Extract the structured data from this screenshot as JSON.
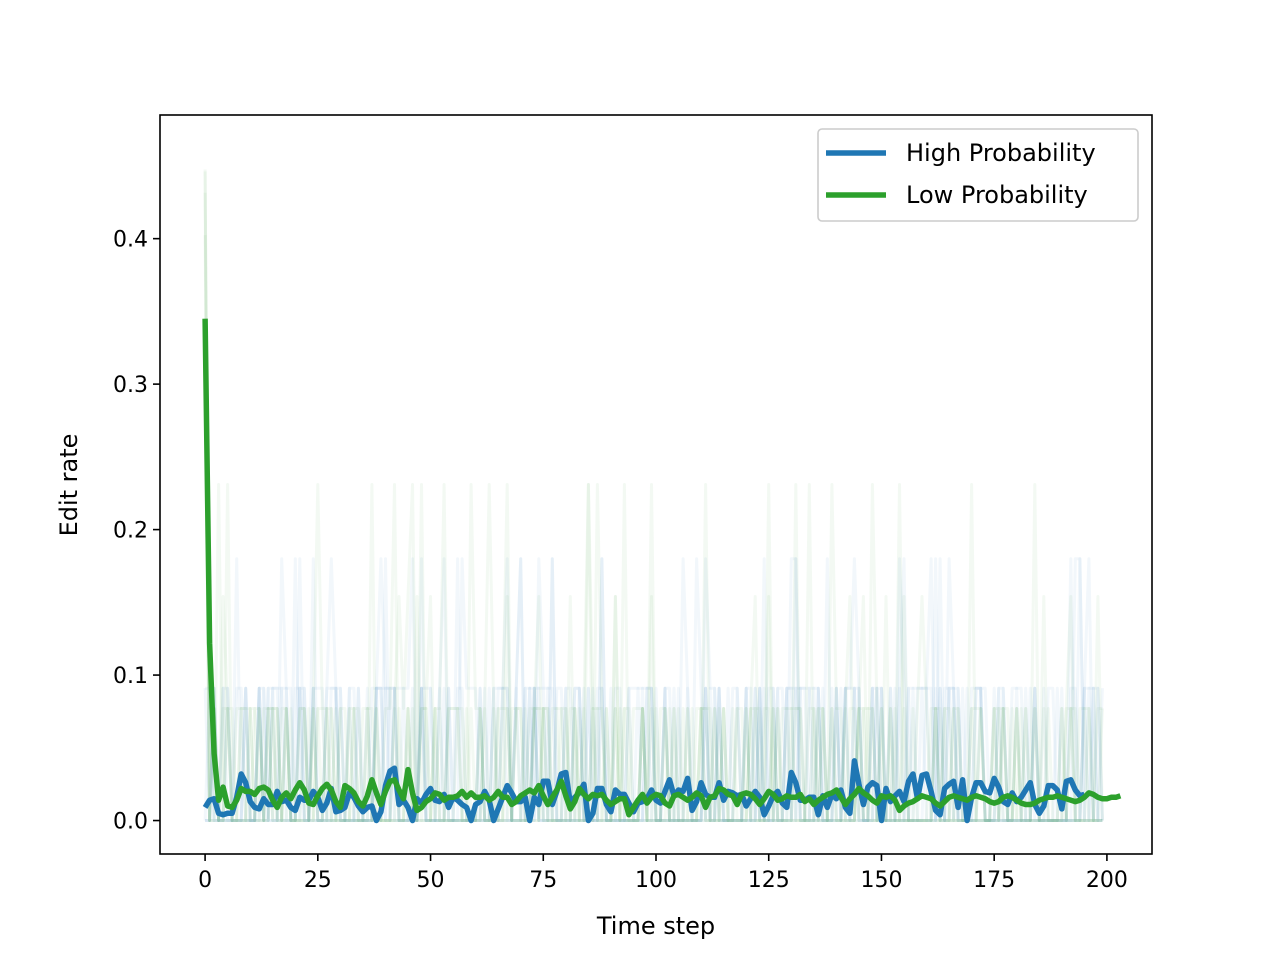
{
  "chart_data": {
    "type": "line",
    "title": "",
    "xlabel": "Time step",
    "ylabel": "Edit rate",
    "xlim": [
      -10,
      210
    ],
    "ylim": [
      -0.023,
      0.485
    ],
    "xticks": [
      0,
      25,
      50,
      75,
      100,
      125,
      150,
      175,
      200
    ],
    "xtick_labels": [
      "0",
      "25",
      "50",
      "75",
      "100",
      "125",
      "150",
      "175",
      "200"
    ],
    "yticks": [
      0.0,
      0.1,
      0.2,
      0.3,
      0.4
    ],
    "ytick_labels": [
      "0.0",
      "0.1",
      "0.2",
      "0.3",
      "0.4"
    ],
    "grid": false,
    "legend_position": "top-right",
    "series": [
      {
        "name": "High Probability",
        "color": "#1f77b4",
        "x_start": 0,
        "x_step": 1,
        "values": [
          0.009,
          0.014,
          0.015,
          0.005,
          0.004,
          0.005,
          0.005,
          0.016,
          0.032,
          0.026,
          0.013,
          0.009,
          0.008,
          0.015,
          0.011,
          0.011,
          0.02,
          0.013,
          0.014,
          0.009,
          0.007,
          0.016,
          0.014,
          0.014,
          0.02,
          0.016,
          0.007,
          0.012,
          0.022,
          0.006,
          0.007,
          0.009,
          0.019,
          0.016,
          0.01,
          0.006,
          0.009,
          0.01,
          0.0,
          0.006,
          0.024,
          0.034,
          0.036,
          0.011,
          0.014,
          0.009,
          0.0,
          0.015,
          0.012,
          0.018,
          0.022,
          0.014,
          0.013,
          0.018,
          0.009,
          0.016,
          0.014,
          0.011,
          0.009,
          0.0,
          0.011,
          0.013,
          0.02,
          0.014,
          0.0,
          0.008,
          0.016,
          0.024,
          0.019,
          0.013,
          0.013,
          0.016,
          0.0,
          0.016,
          0.011,
          0.027,
          0.027,
          0.011,
          0.02,
          0.032,
          0.033,
          0.012,
          0.016,
          0.019,
          0.025,
          0.0,
          0.005,
          0.022,
          0.022,
          0.011,
          0.006,
          0.021,
          0.018,
          0.018,
          0.012,
          0.006,
          0.012,
          0.013,
          0.015,
          0.021,
          0.014,
          0.012,
          0.02,
          0.028,
          0.017,
          0.021,
          0.02,
          0.029,
          0.007,
          0.013,
          0.026,
          0.018,
          0.016,
          0.016,
          0.026,
          0.014,
          0.02,
          0.019,
          0.017,
          0.018,
          0.01,
          0.015,
          0.02,
          0.016,
          0.004,
          0.01,
          0.017,
          0.02,
          0.012,
          0.009,
          0.033,
          0.026,
          0.014,
          0.014,
          0.016,
          0.016,
          0.004,
          0.017,
          0.009,
          0.018,
          0.015,
          0.021,
          0.009,
          0.005,
          0.041,
          0.025,
          0.011,
          0.023,
          0.026,
          0.024,
          0.0,
          0.022,
          0.013,
          0.017,
          0.02,
          0.013,
          0.027,
          0.032,
          0.015,
          0.031,
          0.032,
          0.02,
          0.007,
          0.004,
          0.022,
          0.025,
          0.027,
          0.009,
          0.028,
          0.0,
          0.016,
          0.026,
          0.026,
          0.02,
          0.019,
          0.029,
          0.023,
          0.013,
          0.011,
          0.019,
          0.013,
          0.016,
          0.021,
          0.026,
          0.011,
          0.005,
          0.01,
          0.024,
          0.024,
          0.021,
          0.008,
          0.027,
          0.028,
          0.021,
          0.017,
          0.018
        ]
      },
      {
        "name": "Low Probability",
        "color": "#2ca02c",
        "x_start": 0,
        "x_step": 1,
        "values": [
          0.345,
          0.122,
          0.046,
          0.014,
          0.023,
          0.01,
          0.009,
          0.014,
          0.022,
          0.02,
          0.02,
          0.018,
          0.022,
          0.023,
          0.021,
          0.014,
          0.009,
          0.016,
          0.019,
          0.015,
          0.021,
          0.026,
          0.021,
          0.012,
          0.011,
          0.017,
          0.022,
          0.025,
          0.021,
          0.013,
          0.009,
          0.024,
          0.022,
          0.019,
          0.013,
          0.01,
          0.017,
          0.028,
          0.019,
          0.011,
          0.02,
          0.027,
          0.028,
          0.021,
          0.015,
          0.035,
          0.019,
          0.007,
          0.009,
          0.013,
          0.015,
          0.019,
          0.018,
          0.014,
          0.016,
          0.016,
          0.017,
          0.02,
          0.016,
          0.019,
          0.016,
          0.016,
          0.017,
          0.014,
          0.016,
          0.02,
          0.016,
          0.016,
          0.011,
          0.013,
          0.017,
          0.019,
          0.021,
          0.019,
          0.024,
          0.017,
          0.011,
          0.016,
          0.021,
          0.027,
          0.017,
          0.008,
          0.013,
          0.022,
          0.018,
          0.015,
          0.018,
          0.017,
          0.018,
          0.014,
          0.011,
          0.013,
          0.015,
          0.015,
          0.004,
          0.009,
          0.014,
          0.018,
          0.012,
          0.016,
          0.018,
          0.017,
          0.012,
          0.01,
          0.017,
          0.018,
          0.016,
          0.014,
          0.016,
          0.019,
          0.017,
          0.009,
          0.016,
          0.017,
          0.022,
          0.021,
          0.018,
          0.017,
          0.011,
          0.018,
          0.019,
          0.018,
          0.015,
          0.011,
          0.015,
          0.02,
          0.018,
          0.014,
          0.015,
          0.017,
          0.016,
          0.016,
          0.018,
          0.013,
          0.015,
          0.011,
          0.014,
          0.016,
          0.018,
          0.019,
          0.021,
          0.016,
          0.011,
          0.015,
          0.018,
          0.022,
          0.019,
          0.017,
          0.014,
          0.012,
          0.017,
          0.016,
          0.017,
          0.014,
          0.007,
          0.01,
          0.012,
          0.013,
          0.015,
          0.017,
          0.016,
          0.015,
          0.012,
          0.01,
          0.013,
          0.016,
          0.017,
          0.016,
          0.015,
          0.014,
          0.016,
          0.017,
          0.016,
          0.015,
          0.013,
          0.012,
          0.013,
          0.016,
          0.017,
          0.016,
          0.014,
          0.012,
          0.011,
          0.011,
          0.012,
          0.014,
          0.015,
          0.016,
          0.016,
          0.017,
          0.016,
          0.015,
          0.014,
          0.013,
          0.014,
          0.016,
          0.019,
          0.018,
          0.016,
          0.015,
          0.015,
          0.016,
          0.016,
          0.017
        ]
      }
    ],
    "background_runs": {
      "description_visible": "many faint, transparent individual-run lines behind the means for each series",
      "blue_run_values": [
        0.0,
        0.091,
        0.18
      ],
      "green_run_values": [
        0.0,
        0.077,
        0.154,
        0.231
      ]
    }
  }
}
